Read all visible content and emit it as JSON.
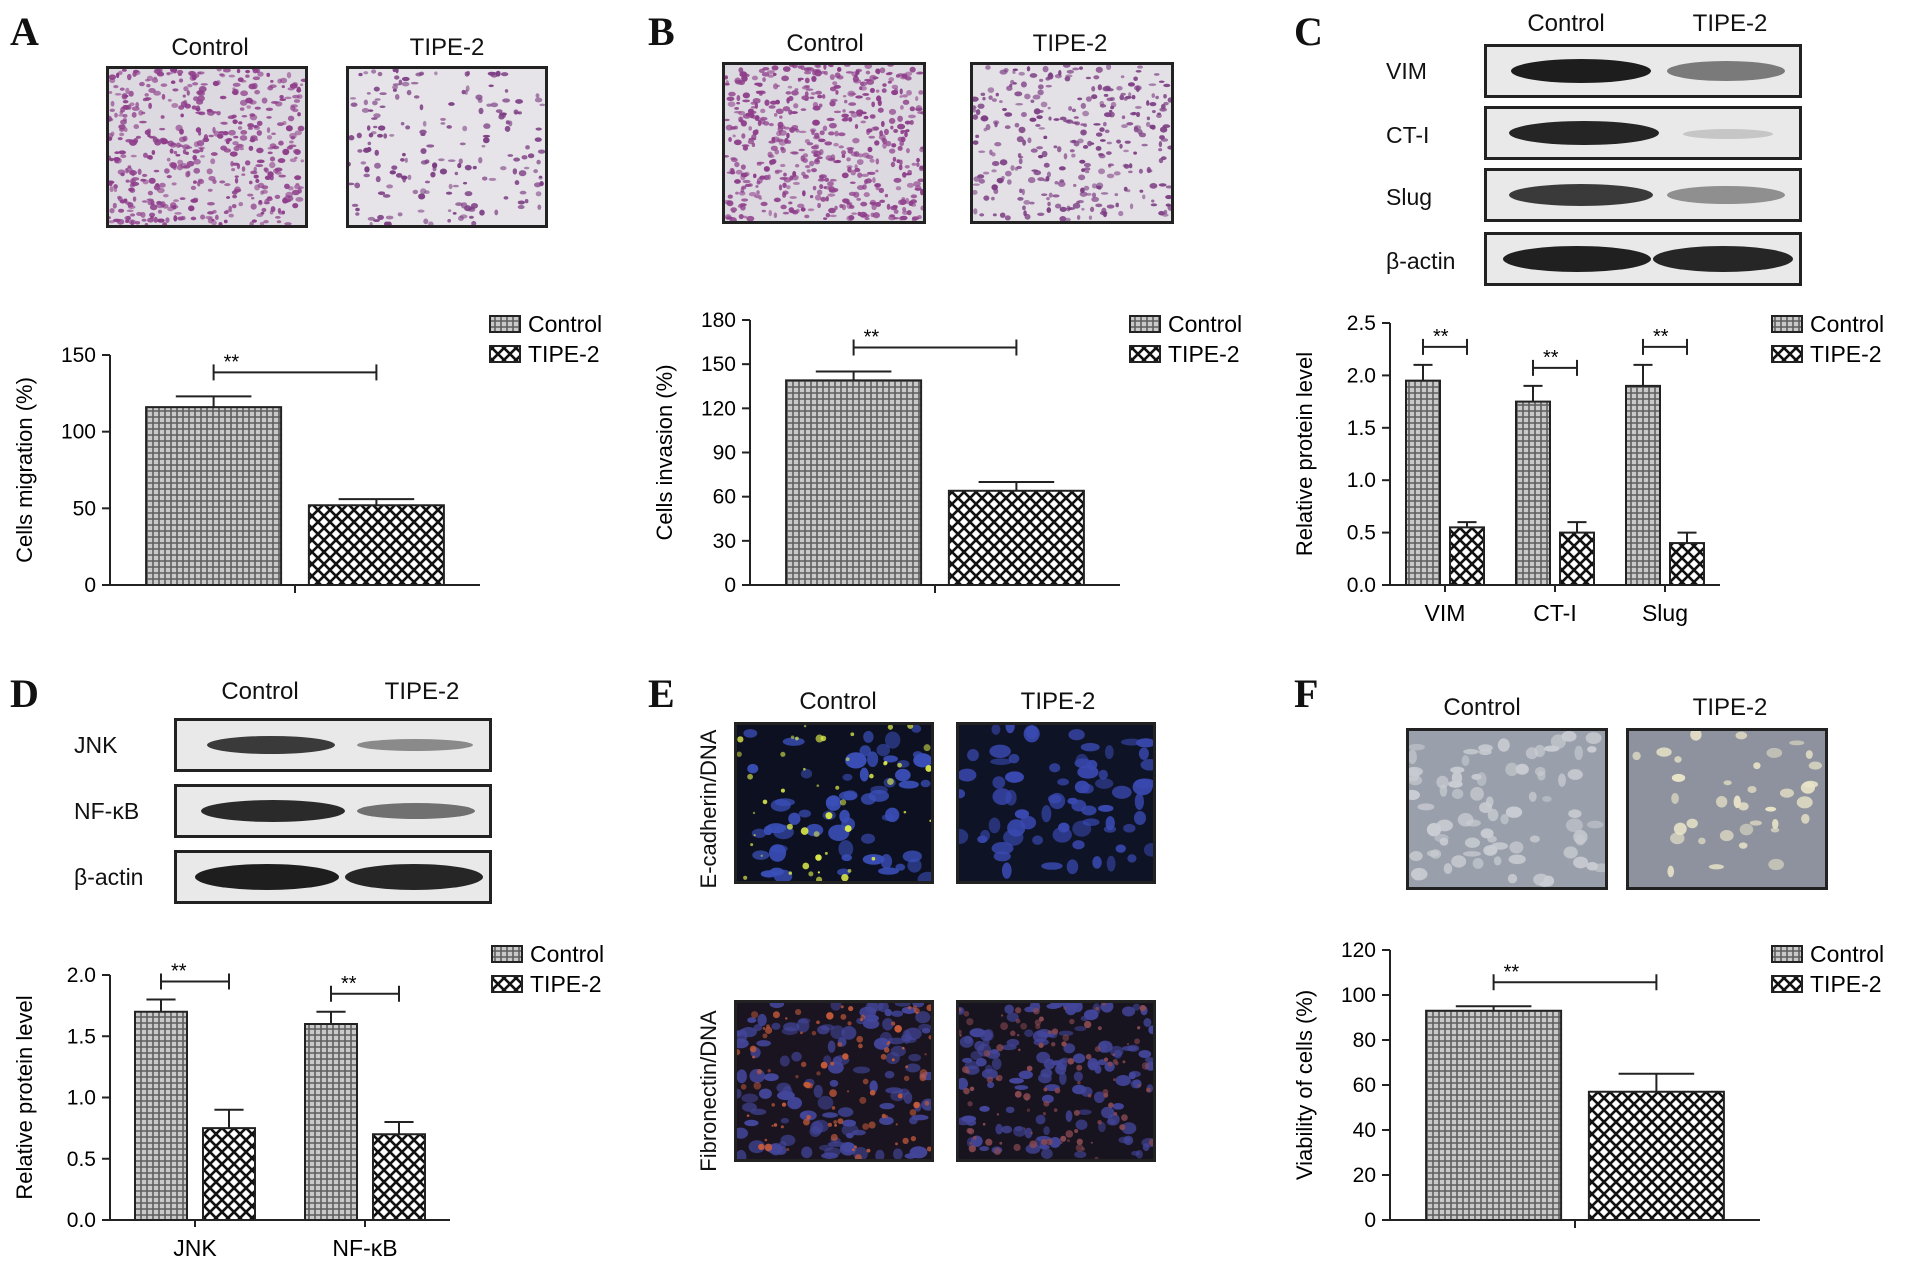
{
  "panel_letters": [
    "A",
    "B",
    "C",
    "D",
    "E",
    "F"
  ],
  "column_labels": {
    "control": "Control",
    "tipe2": "TIPE-2"
  },
  "blot_labels": {
    "C": [
      "VIM",
      "CT-I",
      "Slug",
      "β-actin"
    ],
    "D": [
      "JNK",
      "NF-κB",
      "β-actin"
    ]
  },
  "E_row_labels": [
    "E-cadherin/DNA",
    "Fibronectin/DNA"
  ],
  "colors": {
    "control_fill": "#9a9a9a",
    "tipe2_fill": "#ffffff",
    "axis": "#222222",
    "stain_purple": "#8e3e8a",
    "dapi_blue": "#3a4fb8"
  },
  "chart_data": [
    {
      "panel": "A",
      "type": "bar",
      "categories": [
        ""
      ],
      "series": [
        {
          "name": "Control",
          "values": [
            116
          ],
          "errors": [
            7
          ]
        },
        {
          "name": "TIPE-2",
          "values": [
            52
          ],
          "errors": [
            4
          ]
        }
      ],
      "ylabel": "Cells migration (%)",
      "ylim": [
        0,
        150
      ],
      "yticks": [
        0,
        50,
        100,
        150
      ],
      "significance": [
        "**"
      ],
      "legend": "top-right"
    },
    {
      "panel": "B",
      "type": "bar",
      "categories": [
        ""
      ],
      "series": [
        {
          "name": "Control",
          "values": [
            139
          ],
          "errors": [
            6
          ]
        },
        {
          "name": "TIPE-2",
          "values": [
            64
          ],
          "errors": [
            6
          ]
        }
      ],
      "ylabel": "Cells invasion (%)",
      "ylim": [
        0,
        180
      ],
      "yticks": [
        0,
        30,
        60,
        90,
        120,
        150,
        180
      ],
      "significance": [
        "**"
      ],
      "legend": "top-right"
    },
    {
      "panel": "C",
      "type": "bar",
      "categories": [
        "VIM",
        "CT-I",
        "Slug"
      ],
      "series": [
        {
          "name": "Control",
          "values": [
            1.95,
            1.75,
            1.9
          ],
          "errors": [
            0.15,
            0.15,
            0.2
          ]
        },
        {
          "name": "TIPE-2",
          "values": [
            0.55,
            0.5,
            0.4
          ],
          "errors": [
            0.05,
            0.1,
            0.1
          ]
        }
      ],
      "ylabel": "Relative protein level",
      "ylim": [
        0,
        2.5
      ],
      "yticks": [
        "0.0",
        "0.5",
        "1.0",
        "1.5",
        "2.0",
        "2.5"
      ],
      "significance": [
        "**",
        "**",
        "**"
      ],
      "legend": "top-right"
    },
    {
      "panel": "D",
      "type": "bar",
      "categories": [
        "JNK",
        "NF-κB"
      ],
      "series": [
        {
          "name": "Control",
          "values": [
            1.7,
            1.6
          ],
          "errors": [
            0.1,
            0.1
          ]
        },
        {
          "name": "TIPE-2",
          "values": [
            0.75,
            0.7
          ],
          "errors": [
            0.15,
            0.1
          ]
        }
      ],
      "ylabel": "Relative protein level",
      "ylim": [
        0,
        2.0
      ],
      "yticks": [
        "0.0",
        "0.5",
        "1.0",
        "1.5",
        "2.0"
      ],
      "significance": [
        "**",
        "**"
      ],
      "legend": "top-right"
    },
    {
      "panel": "F",
      "type": "bar",
      "categories": [
        ""
      ],
      "series": [
        {
          "name": "Control",
          "values": [
            93
          ],
          "errors": [
            2
          ]
        },
        {
          "name": "TIPE-2",
          "values": [
            57
          ],
          "errors": [
            8
          ]
        }
      ],
      "ylabel": "Viability of cells (%)",
      "ylim": [
        0,
        120
      ],
      "yticks": [
        0,
        20,
        40,
        60,
        80,
        100,
        120
      ],
      "significance": [
        "**"
      ],
      "legend": "top-right"
    }
  ]
}
